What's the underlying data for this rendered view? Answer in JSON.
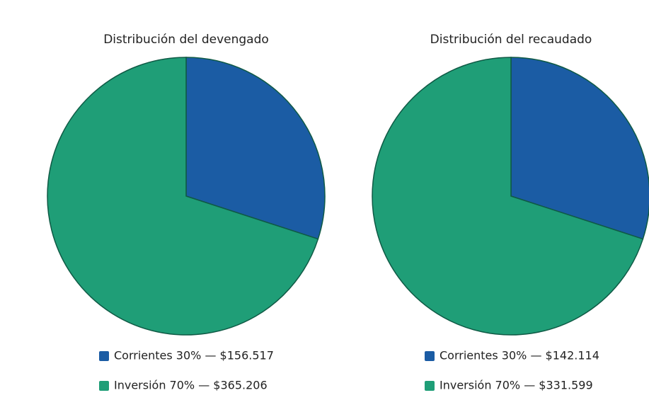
{
  "chart_data": [
    {
      "type": "pie",
      "title": "Distribución del devengado",
      "categories": [
        "Corrientes",
        "Inversión"
      ],
      "values": [
        156517,
        365206
      ],
      "value_labels": [
        "Corrientes 30% — $156.517",
        "Inversión 70% — $365.206"
      ],
      "colors": [
        "#1b5ca4",
        "#1f9e77"
      ]
    },
    {
      "type": "pie",
      "title": "Distribución del recaudado",
      "categories": [
        "Corrientes",
        "Inversión"
      ],
      "values": [
        142114,
        331599
      ],
      "value_labels": [
        "Corrientes 30% — $142.114",
        "Inversión 70% — $331.599"
      ],
      "colors": [
        "#1b5ca4",
        "#1f9e77"
      ]
    }
  ]
}
